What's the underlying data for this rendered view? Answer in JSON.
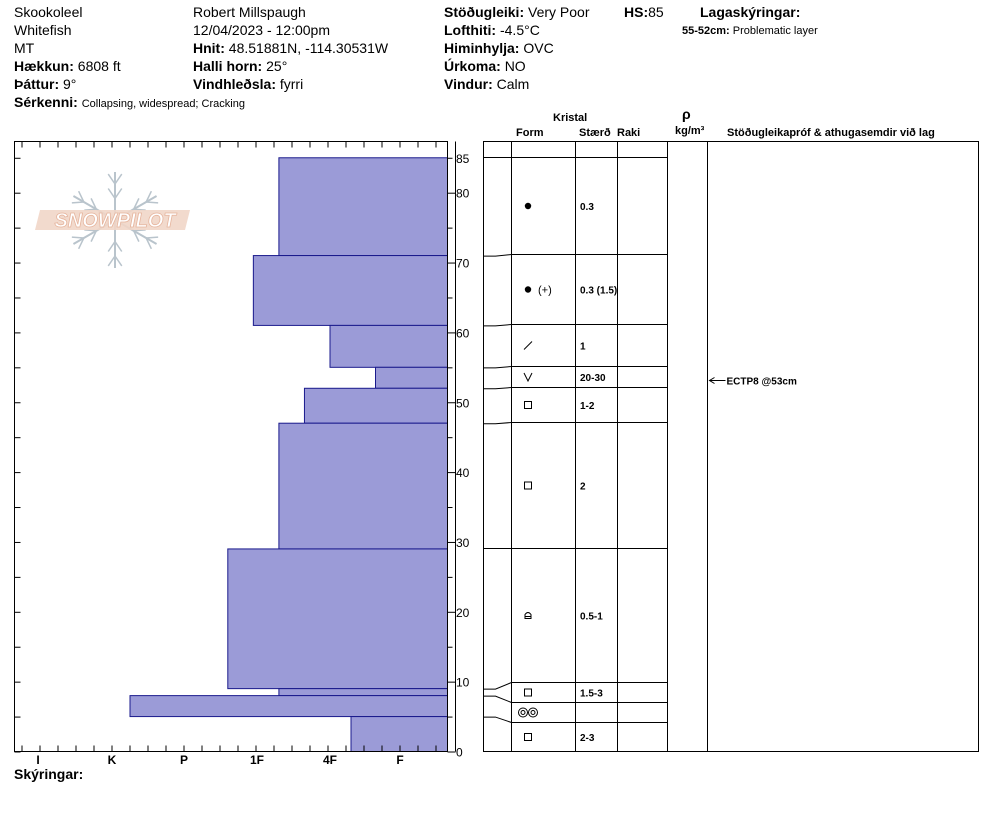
{
  "header": {
    "col1": [
      "Skookoleel",
      "Whitefish",
      "MT"
    ],
    "elevation_label": "Hækkun:",
    "elevation_value": "6808 ft",
    "aspect_label": "Þáttur:",
    "aspect_value": "9°",
    "features_label": "Sérkenni:",
    "features_value": "Collapsing, widespread; Cracking",
    "observer": "Robert Millspaugh",
    "datetime": "12/04/2023 - 12:00pm",
    "coords_label": "Hnit:",
    "coords_value": "48.51881N, -114.30531W",
    "slope_label": "Halli horn:",
    "slope_value": "25°",
    "wind_load_label": "Vindhleðsla:",
    "wind_load_value": "fyrri",
    "stability_label": "Stöðugleiki:",
    "stability_value": "Very Poor",
    "hs_label": "HS:",
    "hs_value": "85",
    "airtemp_label": "Lofthiti:",
    "airtemp_value": "-4.5°C",
    "sky_label": "Himinhylja:",
    "sky_value": "OVC",
    "precip_label": "Úrkoma:",
    "precip_value": "NO",
    "wind_label": "Vindur:",
    "wind_value": "Calm",
    "legend_title": "Lagaskýringar:",
    "legend_key": "55-52cm:",
    "legend_value": "Problematic layer"
  },
  "logo_text": "SNOWPILOT",
  "columns": {
    "crystal": "Kristal",
    "form": "Form",
    "size": "Stærð",
    "moisture": "Raki",
    "rho": "ρ",
    "density_unit": "kg/m³",
    "tests": "Stöðugleikapróf & athugasemdir við lag"
  },
  "remarks_label": "Skýringar:",
  "colors": {
    "bar": "#9b9bd7",
    "bar_edge": "#1a1a8c"
  },
  "chart_data": {
    "type": "bar",
    "orientation": "horizontal",
    "x_tick_labels": [
      "I",
      "K",
      "P",
      "1F",
      "4F",
      "F"
    ],
    "y_tick_labels": [
      "0",
      "10",
      "20",
      "30",
      "40",
      "50",
      "60",
      "70",
      "80",
      "85"
    ],
    "ylim": [
      0,
      85
    ],
    "x_categories": [
      "F",
      "4F",
      "1F",
      "P",
      "K",
      "I"
    ],
    "layers": [
      {
        "top": 85,
        "bottom": 71,
        "hardness": 1.7,
        "form": "round-dot",
        "size": "0.3"
      },
      {
        "top": 71,
        "bottom": 61,
        "hardness": 2.05,
        "form": "round-dot-plus",
        "size": "0.3 (1.5)"
      },
      {
        "top": 61,
        "bottom": 55,
        "hardness": 1.0,
        "form": "slash",
        "size": "1"
      },
      {
        "top": 55,
        "bottom": 52,
        "hardness": 0.35,
        "form": "depth-hoar-v",
        "size": "20-30"
      },
      {
        "top": 52,
        "bottom": 47,
        "hardness": 1.35,
        "form": "square",
        "size": "1-2"
      },
      {
        "top": 47,
        "bottom": 29,
        "hardness": 1.7,
        "form": "square",
        "size": "2"
      },
      {
        "top": 29,
        "bottom": 9,
        "hardness": 2.4,
        "form": "hollow-cup",
        "size": "0.5-1"
      },
      {
        "top": 9,
        "bottom": 8,
        "hardness": 1.7,
        "form": "square",
        "size": "1.5-3"
      },
      {
        "top": 8,
        "bottom": 5,
        "hardness": 3.75,
        "form": "melt-clusters",
        "size": ""
      },
      {
        "top": 5,
        "bottom": 0,
        "hardness": 0.7,
        "form": "square",
        "size": "2-3"
      }
    ],
    "tests": [
      {
        "depth": 53,
        "label": "ECTP8 @53cm"
      }
    ]
  }
}
